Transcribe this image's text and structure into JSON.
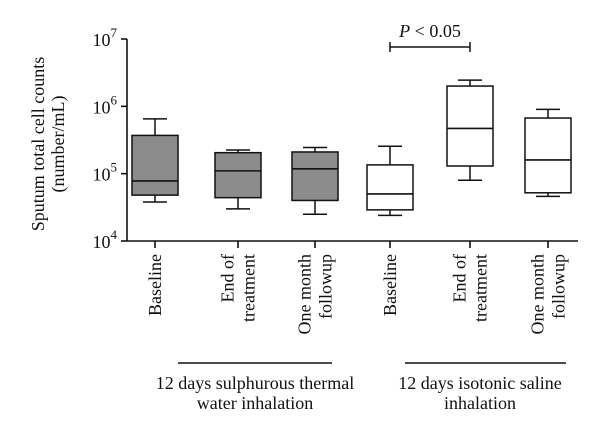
{
  "chart_data": {
    "type": "boxplot",
    "yscale": "log",
    "ylim": [
      10000,
      10000000
    ],
    "ylabel": [
      "Sputum total cell counts",
      "(number/mL)"
    ],
    "yticks": [
      {
        "value": 10000,
        "base": "10",
        "exp": "4"
      },
      {
        "value": 100000,
        "base": "10",
        "exp": "5"
      },
      {
        "value": 1000000,
        "base": "10",
        "exp": "6"
      },
      {
        "value": 10000000,
        "base": "10",
        "exp": "7"
      }
    ],
    "boxes": [
      {
        "label": [
          "Baseline"
        ],
        "group": 0,
        "fill": "#8c8c8c",
        "min": 38000,
        "q1": 48000,
        "median": 78000,
        "q3": 370000,
        "max": 650000
      },
      {
        "label": [
          "End of",
          "treatment"
        ],
        "group": 0,
        "fill": "#8c8c8c",
        "min": 30000,
        "q1": 44000,
        "median": 110000,
        "q3": 205000,
        "max": 225000
      },
      {
        "label": [
          "One month",
          "followup"
        ],
        "group": 0,
        "fill": "#8c8c8c",
        "min": 25000,
        "q1": 40000,
        "median": 118000,
        "q3": 210000,
        "max": 245000
      },
      {
        "label": [
          "Baseline"
        ],
        "group": 1,
        "fill": "#ffffff",
        "min": 24000,
        "q1": 29000,
        "median": 50000,
        "q3": 135000,
        "max": 255000
      },
      {
        "label": [
          "End of",
          "treatment"
        ],
        "group": 1,
        "fill": "#ffffff",
        "min": 80000,
        "q1": 130000,
        "median": 470000,
        "q3": 2000000,
        "max": 2450000
      },
      {
        "label": [
          "One month",
          "followup"
        ],
        "group": 1,
        "fill": "#ffffff",
        "min": 46000,
        "q1": 52000,
        "median": 160000,
        "q3": 670000,
        "max": 900000
      }
    ],
    "groups": [
      {
        "lines": [
          "12 days sulphurous thermal",
          "water inhalation"
        ]
      },
      {
        "lines": [
          "12 days isotonic saline",
          "inhalation"
        ]
      }
    ],
    "annotation": {
      "text": "P < 0.05",
      "from_box": 3,
      "to_box": 4,
      "value": 3000000
    }
  }
}
